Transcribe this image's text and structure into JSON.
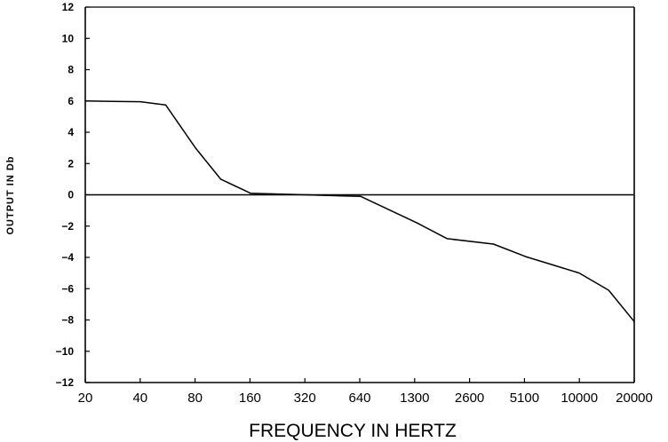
{
  "chart_data": {
    "type": "line",
    "title": "",
    "xlabel": "FREQUENCY IN HERTZ",
    "ylabel": "OUTPUT IN Db",
    "x_tick_labels": [
      "20",
      "40",
      "80",
      "160",
      "320",
      "640",
      "1300",
      "2600",
      "5100",
      "10000",
      "20000"
    ],
    "y_ticks": [
      12,
      10,
      8,
      6,
      4,
      2,
      0,
      -2,
      -4,
      -6,
      -8,
      -10,
      -12
    ],
    "y_tick_labels": [
      "12",
      "10",
      "8",
      "6",
      "4",
      "2",
      "0",
      "−2",
      "−4",
      "−6",
      "−8",
      "−10",
      "−12"
    ],
    "ylim": [
      -12,
      12
    ],
    "x_scale": "log",
    "xlim": [
      20,
      20000
    ],
    "grid": false,
    "reference_line_y": 0,
    "series": [
      {
        "points": [
          [
            20,
            6.0
          ],
          [
            40,
            5.95
          ],
          [
            55,
            5.75
          ],
          [
            80,
            3.0
          ],
          [
            110,
            1.0
          ],
          [
            160,
            0.1
          ],
          [
            320,
            0.0
          ],
          [
            640,
            -0.1
          ],
          [
            1300,
            -1.8
          ],
          [
            1900,
            -2.8
          ],
          [
            3400,
            -3.15
          ],
          [
            5100,
            -3.95
          ],
          [
            6800,
            -4.4
          ],
          [
            10000,
            -5.0
          ],
          [
            14500,
            -6.1
          ],
          [
            20000,
            -8.1
          ]
        ]
      }
    ]
  }
}
